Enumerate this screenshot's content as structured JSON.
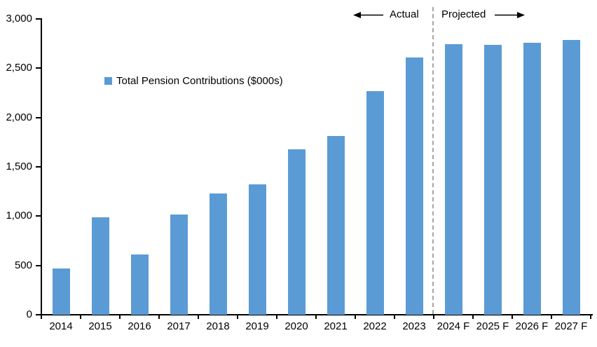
{
  "annotations": {
    "actual_label": "Actual",
    "projected_label": "Projected"
  },
  "legend": {
    "label": "Total Pension Contributions ($000s)",
    "marker_color": "#5B9BD5"
  },
  "chart_data": {
    "type": "bar",
    "title": "",
    "series_name": "Total Pension Contributions ($000s)",
    "categories": [
      "2014",
      "2015",
      "2016",
      "2017",
      "2018",
      "2019",
      "2020",
      "2021",
      "2022",
      "2023",
      "2024 F",
      "2025 F",
      "2026 F",
      "2027 F"
    ],
    "values": [
      470,
      990,
      610,
      1020,
      1230,
      1320,
      1680,
      1810,
      2270,
      2610,
      2745,
      2740,
      2760,
      2790
    ],
    "xlabel": "",
    "ylabel": "",
    "ylim": [
      0,
      3000
    ],
    "ytick_step": 500,
    "ytick_labels": [
      "0",
      "500",
      "1,000",
      "1,500",
      "2,000",
      "2,500",
      "3,000"
    ],
    "grid": false,
    "legend_position": "inside-upper-left",
    "bar_color": "#5B9BD5",
    "axis_color": "#000000",
    "divider": {
      "after_category": "2023",
      "style": "dashed",
      "color": "#A6A6A6"
    },
    "regions": {
      "actual": [
        "2014",
        "2023"
      ],
      "projected": [
        "2024 F",
        "2027 F"
      ]
    }
  }
}
